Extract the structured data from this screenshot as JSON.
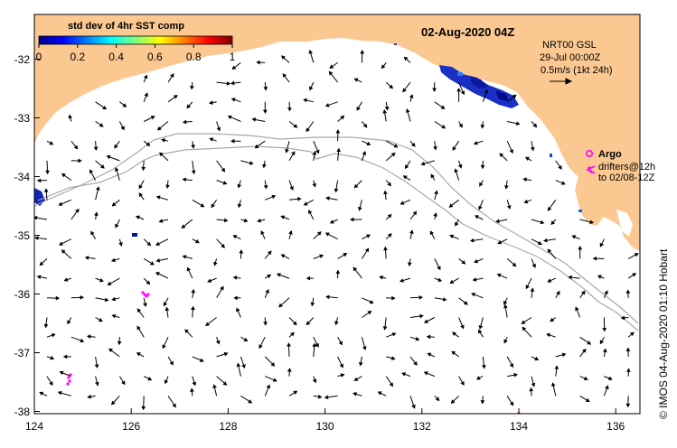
{
  "map": {
    "title": "02-Aug-2020 04Z",
    "credit": "©  IMOS 04-Aug-2020 01:10 Hobart",
    "colorbar": {
      "title": "std dev of 4hr SST comp",
      "ticks": [
        "0",
        "0.2",
        "0.4",
        "0.6",
        "0.8",
        "1"
      ]
    },
    "info": {
      "line1": "NRT00 GSL",
      "line2": "29-Jul 00:00Z",
      "line3": "0.5m/s (1kt 24h)"
    },
    "argo": {
      "label": "Argo",
      "line1": "drifters@12h",
      "line2": "to 02/08-12Z"
    },
    "x_axis": {
      "range": [
        124,
        136.5
      ],
      "ticks": [
        "124",
        "126",
        "128",
        "130",
        "132",
        "134",
        "136"
      ]
    },
    "y_axis": {
      "range": [
        -38.1,
        -31.3
      ],
      "ticks": [
        "-32",
        "-33",
        "-34",
        "-35",
        "-36",
        "-37",
        "-38"
      ]
    },
    "colors": {
      "land": "#fbc892",
      "vector": "#000000",
      "contour": "#a8a8a8",
      "argo": "#ff00ff"
    }
  }
}
